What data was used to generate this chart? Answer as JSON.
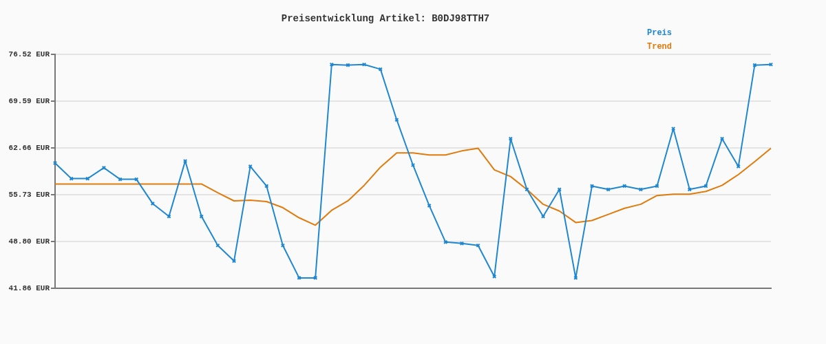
{
  "chart_data": {
    "type": "line",
    "title": "Preisentwicklung Artikel: B0DJ98TTH7",
    "categories": [
      null,
      null,
      null,
      null,
      null,
      null,
      null,
      null,
      null,
      null,
      null,
      null,
      null,
      null,
      null,
      null,
      null,
      null,
      null,
      null,
      null,
      null,
      null,
      null,
      null,
      null,
      null,
      null,
      null,
      null,
      null,
      null,
      null,
      null,
      null,
      null,
      null,
      null,
      null,
      null,
      null,
      null,
      null,
      null,
      null
    ],
    "series": [
      {
        "name": "Preis",
        "color": "#1f86d0",
        "marker": "cross",
        "values": [
          60.4,
          58.1,
          58.1,
          59.7,
          58.0,
          58.0,
          54.4,
          52.5,
          60.7,
          52.5,
          48.2,
          45.9,
          59.9,
          57.0,
          48.2,
          43.4,
          43.4,
          75.0,
          74.9,
          75.0,
          74.3,
          66.8,
          60.1,
          54.1,
          48.7,
          48.5,
          48.2,
          43.6,
          64.0,
          56.5,
          52.5,
          56.5,
          43.4,
          57.0,
          56.5,
          57.0,
          56.5,
          57.0,
          65.5,
          56.5,
          57.0,
          64.0,
          59.9,
          74.9,
          75.0
        ]
      },
      {
        "name": "Trend",
        "color": "#e07b0b",
        "marker": "none",
        "values": [
          57.3,
          57.3,
          57.3,
          57.3,
          57.3,
          57.3,
          57.3,
          57.3,
          57.3,
          57.3,
          56.0,
          54.8,
          54.9,
          54.7,
          53.8,
          52.3,
          51.2,
          53.4,
          54.8,
          57.1,
          59.8,
          61.9,
          61.9,
          61.6,
          61.6,
          62.2,
          62.6,
          59.4,
          58.4,
          56.5,
          54.3,
          53.3,
          51.6,
          51.9,
          52.8,
          53.7,
          54.3,
          55.6,
          55.8,
          55.8,
          56.2,
          57.1,
          58.7,
          60.6,
          62.6
        ]
      }
    ],
    "ylim": [
      41.86,
      76.52
    ],
    "yticks": [
      {
        "value": 41.86,
        "label": "41.86 EUR"
      },
      {
        "value": 48.8,
        "label": "48.80 EUR"
      },
      {
        "value": 55.73,
        "label": "55.73 EUR"
      },
      {
        "value": 62.66,
        "label": "62.66 EUR"
      },
      {
        "value": 69.59,
        "label": "69.59 EUR"
      },
      {
        "value": 76.52,
        "label": "76.52 EUR"
      }
    ],
    "tick_labels": "y",
    "grid": "y",
    "legend": "top right",
    "line_style": "solid"
  }
}
